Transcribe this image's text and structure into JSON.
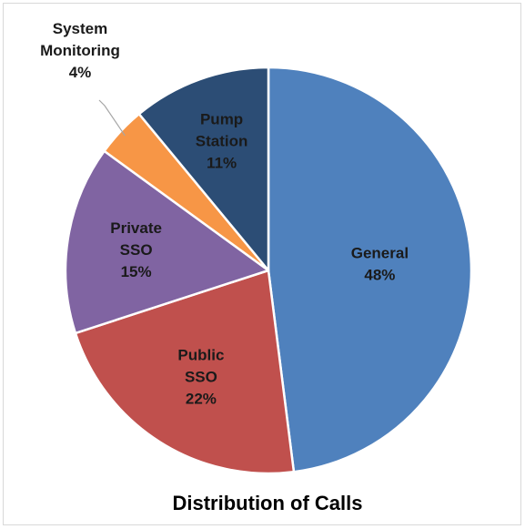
{
  "chart_data": {
    "type": "pie",
    "title": "Distribution of Calls",
    "slices": [
      {
        "label_lines": [
          "General",
          "48%"
        ],
        "value": 48,
        "color": "#4f81bd"
      },
      {
        "label_lines": [
          "Public",
          "SSO",
          "22%"
        ],
        "value": 22,
        "color": "#c0504d"
      },
      {
        "label_lines": [
          "Private",
          "SSO",
          "15%"
        ],
        "value": 15,
        "color": "#8064a2"
      },
      {
        "label_lines": [
          "System",
          "Monitoring",
          "4%"
        ],
        "value": 4,
        "color": "#f79646"
      },
      {
        "label_lines": [
          "Pump",
          "Station",
          "11%"
        ],
        "value": 11,
        "color": "#2c4d75"
      }
    ],
    "start_angle": "12 o'clock",
    "direction": "clockwise",
    "legend": "none"
  }
}
